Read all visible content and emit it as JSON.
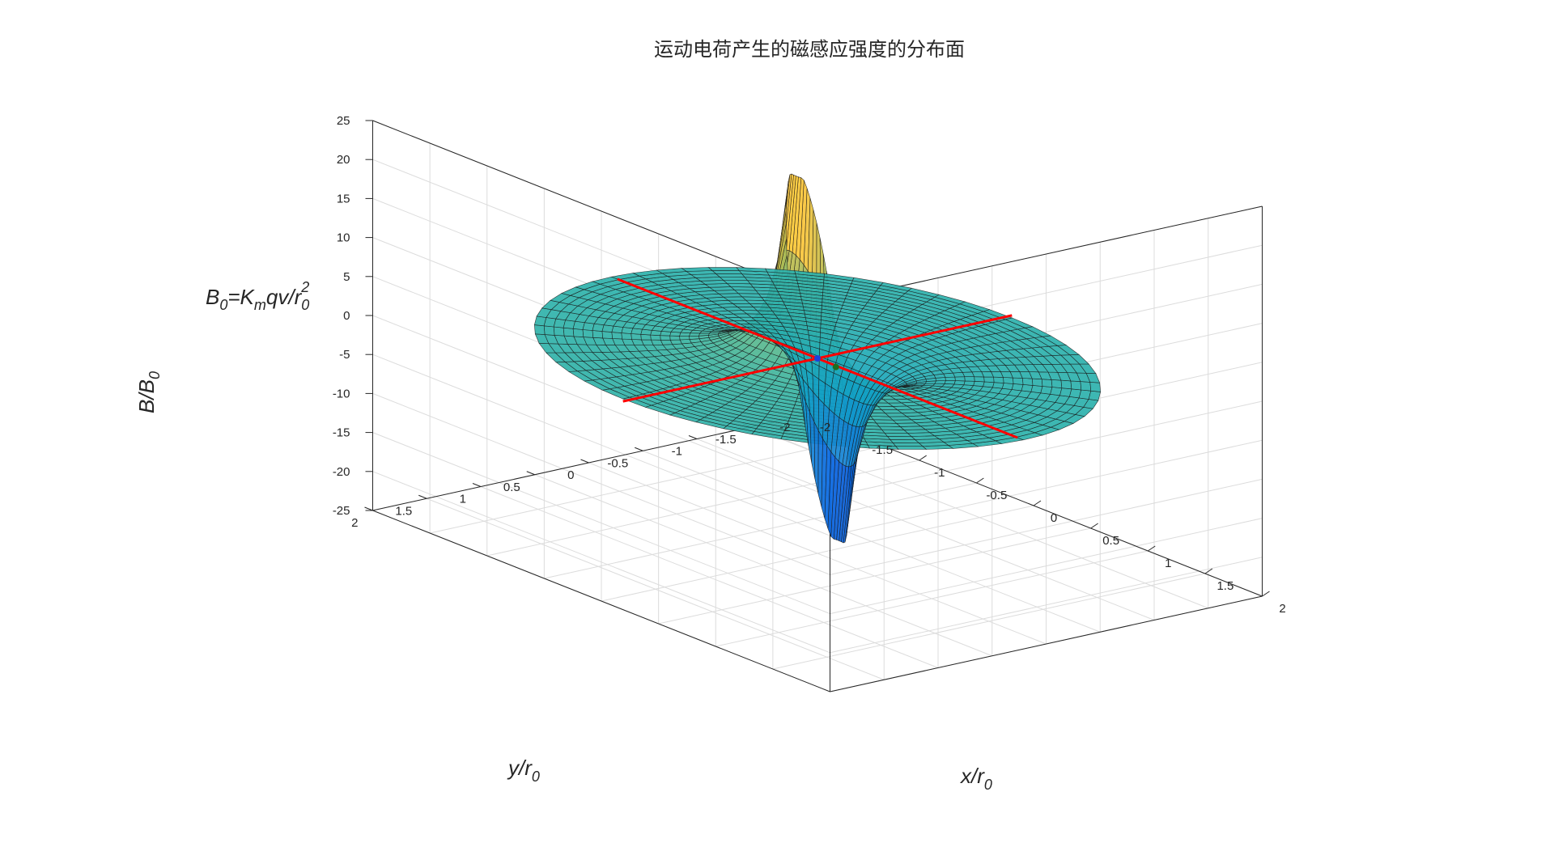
{
  "chart_data": {
    "type": "surface",
    "title": "运动电荷产生的磁感应强度的分布面",
    "annotation": {
      "base": [
        "B",
        "=K",
        "qv/r"
      ],
      "subs": [
        "0",
        "m",
        "0"
      ],
      "sup": "2"
    },
    "xlabel": {
      "base": "x/r",
      "sub": "0"
    },
    "ylabel": {
      "base": "y/r",
      "sub": "0"
    },
    "zlabel": {
      "base": "B/B",
      "sub": "0"
    },
    "xlim": [
      -2,
      2
    ],
    "ylim": [
      -2,
      2
    ],
    "zlim": [
      -25,
      25
    ],
    "x_ticks": [
      "-2",
      "-1.5",
      "-1",
      "-0.5",
      "0",
      "0.5",
      "1",
      "1.5",
      "2"
    ],
    "y_ticks": [
      "-2",
      "-1.5",
      "-1",
      "-0.5",
      "0",
      "0.5",
      "1",
      "1.5",
      "2"
    ],
    "z_ticks": [
      "-25",
      "-20",
      "-15",
      "-10",
      "-5",
      "0",
      "5",
      "10",
      "15",
      "20",
      "25"
    ],
    "surface": {
      "formula": "B/B0 = sin(theta) / r^2, polar grid",
      "r_range": [
        0.2,
        1.8
      ],
      "peak_z": 24,
      "trough_z": -24,
      "colormap": "parula"
    },
    "lines": [
      {
        "name": "x-axis line",
        "color": "#ff0000",
        "from": [
          -1.75,
          0,
          0
        ],
        "to": [
          1.75,
          0,
          0
        ]
      },
      {
        "name": "y-axis line",
        "color": "#ff0000",
        "from": [
          0,
          -1.8,
          0
        ],
        "to": [
          0,
          1.8,
          0
        ]
      }
    ],
    "markers": [
      {
        "name": "charge",
        "color": "#1f3fd8",
        "at": [
          0,
          0,
          0
        ]
      },
      {
        "name": "velocity-tip",
        "color": "#1e6e1e",
        "at": [
          0.18,
          0.02,
          0
        ]
      }
    ],
    "grid": true
  },
  "colors": {
    "axis": "#262626",
    "grid": "#dcdcdc",
    "red_line": "#ff0000"
  }
}
